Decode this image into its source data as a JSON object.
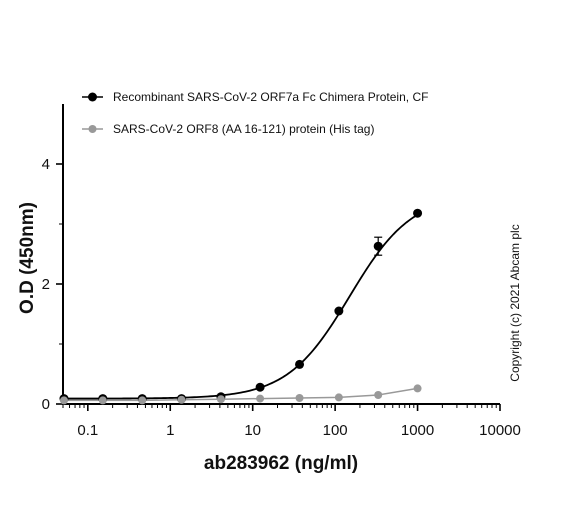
{
  "chart_data": {
    "type": "scatter",
    "x_scale": "log",
    "xlabel": "ab283962 (ng/ml)",
    "ylabel": "O.D (450nm)",
    "xlim": [
      0.05,
      10000
    ],
    "ylim": [
      0,
      5
    ],
    "x_ticks": [
      "0.1",
      "1",
      "10",
      "100",
      "1000",
      "10000"
    ],
    "x_tick_values": [
      0.1,
      1,
      10,
      100,
      1000,
      10000
    ],
    "y_ticks": [
      "0",
      "2",
      "4"
    ],
    "y_tick_values": [
      0,
      2,
      4
    ],
    "legend_position": "top",
    "copyright": "Copyright (c) 2021 Abcam plc",
    "series": [
      {
        "name": "Recombinant SARS-CoV-2 ORF7a Fc Chimera Protein, CF",
        "color": "#000000",
        "fit": "sigmoid",
        "x": [
          0.0514,
          0.152,
          0.457,
          1.37,
          4.12,
          12.3,
          37.0,
          111,
          333,
          1000
        ],
        "y": [
          0.09,
          0.09,
          0.09,
          0.09,
          0.12,
          0.28,
          0.66,
          1.55,
          2.63,
          3.18
        ],
        "error": [
          0,
          0,
          0,
          0,
          0,
          0,
          0,
          0,
          0.15,
          0
        ]
      },
      {
        "name": "SARS-CoV-2 ORF8 (AA 16-121) protein (His tag)",
        "color": "#999999",
        "fit": "line",
        "x": [
          0.0514,
          0.152,
          0.457,
          1.37,
          4.12,
          12.3,
          37.0,
          111,
          333,
          1000
        ],
        "y": [
          0.06,
          0.06,
          0.06,
          0.07,
          0.08,
          0.09,
          0.1,
          0.11,
          0.15,
          0.26
        ],
        "error": [
          0,
          0,
          0,
          0,
          0,
          0,
          0,
          0,
          0,
          0
        ]
      }
    ]
  }
}
